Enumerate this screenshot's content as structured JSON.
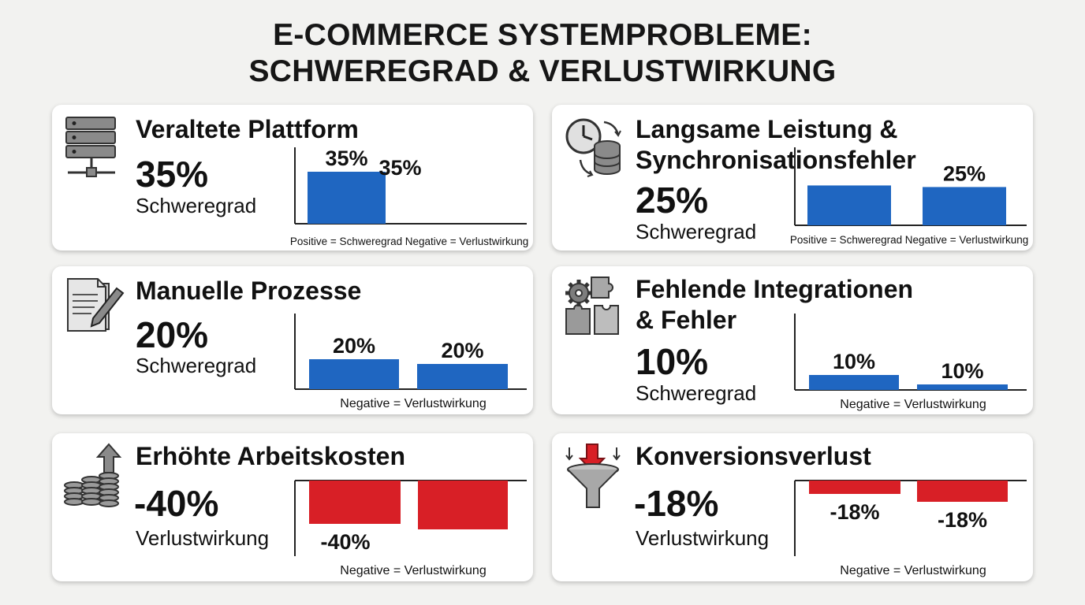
{
  "page": {
    "title_line1": "E-COMMERCE SYSTEMPROBLEME:",
    "title_line2": "SCHWEREGRAD & VERLUSTWIRKUNG"
  },
  "colors": {
    "positive": "#1f66c1",
    "negative": "#d81f26",
    "card_bg": "#ffffff",
    "page_bg": "#f2f2f0"
  },
  "cards": [
    {
      "title_lines": [
        "Veraltete Plattform"
      ],
      "icon": "server-network-icon",
      "value": "35%",
      "metric": "Schweregrad",
      "captions": [
        "Positive = Schweregrad",
        "Negative = Verlustwirkung"
      ]
    },
    {
      "title_lines": [
        "Langsame Leistung &",
        "Synchronisationsfehler"
      ],
      "icon": "clock-database-sync-icon",
      "value": "25%",
      "metric": "Schweregrad",
      "captions": [
        "Positive = Schweregrad",
        "Negative = Verlustwirkung"
      ]
    },
    {
      "title_lines": [
        "Manuelle Prozesse"
      ],
      "icon": "document-pen-icon",
      "value": "20%",
      "metric": "Schweregrad",
      "captions": [
        "Negative = Verlustwirkung"
      ]
    },
    {
      "title_lines": [
        "Fehlende Integrationen",
        "& Fehler"
      ],
      "icon": "gear-puzzle-icon",
      "value": "10%",
      "metric": "Schweregrad",
      "captions": [
        "Negative = Verlustwirkung"
      ]
    },
    {
      "title_lines": [
        "Erhöhte Arbeitskosten"
      ],
      "icon": "coins-arrow-up-icon",
      "value": "-40%",
      "metric": "Verlustwirkung",
      "captions": [
        "Negative = Verlustwirkung"
      ]
    },
    {
      "title_lines": [
        "Konversionsverlust"
      ],
      "icon": "funnel-arrow-down-icon",
      "value": "-18%",
      "metric": "Verlustwirkung",
      "captions": [
        "Negative = Verlustwirkung"
      ]
    }
  ],
  "chart_data": [
    {
      "type": "bar",
      "title": "Veraltete Plattform",
      "categories": [
        "Positive = Schweregrad",
        "Negative = Verlustwirkung"
      ],
      "values": [
        35,
        35
      ],
      "labels": [
        "35%",
        "35%"
      ],
      "ylim": [
        0,
        35
      ],
      "color": "#1f66c1"
    },
    {
      "type": "bar",
      "title": "Langsame Leistung & Synchronisationsfehler",
      "categories": [
        "Positive = Schweregrad",
        "Negative = Verlustwirkung"
      ],
      "values": [
        25,
        25
      ],
      "labels": [
        "",
        "25%"
      ],
      "ylim": [
        0,
        35
      ],
      "color": "#1f66c1"
    },
    {
      "type": "bar",
      "title": "Manuelle Prozesse",
      "categories": [
        "",
        ""
      ],
      "values": [
        20,
        20
      ],
      "labels": [
        "20%",
        "20%"
      ],
      "ylim": [
        0,
        35
      ],
      "color": "#1f66c1"
    },
    {
      "type": "bar",
      "title": "Fehlende Integrationen & Fehler",
      "categories": [
        "",
        ""
      ],
      "values": [
        10,
        10
      ],
      "labels": [
        "10%",
        "10%"
      ],
      "ylim": [
        0,
        35
      ],
      "color": "#1f66c1"
    },
    {
      "type": "bar",
      "title": "Erhöhte Arbeitskosten",
      "categories": [
        "",
        ""
      ],
      "values": [
        -40,
        -40
      ],
      "labels": [
        "-40%",
        ""
      ],
      "ylim": [
        -45,
        0
      ],
      "color": "#d81f26"
    },
    {
      "type": "bar",
      "title": "Konversionsverlust",
      "categories": [
        "",
        ""
      ],
      "values": [
        -18,
        -18
      ],
      "labels": [
        "-18%",
        "-18%"
      ],
      "ylim": [
        -45,
        0
      ],
      "color": "#d81f26"
    }
  ]
}
